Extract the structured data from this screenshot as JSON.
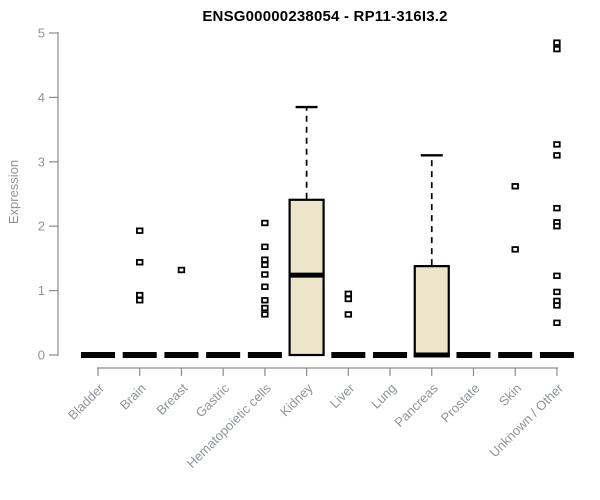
{
  "chart_data": {
    "type": "boxplot",
    "title": "ENSG00000238054 - RP11-316I3.2",
    "ylabel": "Expression",
    "xlabel": "",
    "ylim": [
      0,
      5
    ],
    "yticks": [
      0,
      1,
      2,
      3,
      4,
      5
    ],
    "grid": false,
    "legend": false,
    "categories": [
      "Bladder",
      "Brain",
      "Breast",
      "Gastric",
      "Hematopoietic cells",
      "Kidney",
      "Liver",
      "Lung",
      "Pancreas",
      "Prostate",
      "Skin",
      "Unknown / Other"
    ],
    "series": [
      {
        "category": "Bladder",
        "whisker_low": 0,
        "q1": 0,
        "median": 0,
        "q3": 0,
        "whisker_high": 0,
        "outliers": []
      },
      {
        "category": "Brain",
        "whisker_low": 0,
        "q1": 0,
        "median": 0,
        "q3": 0,
        "whisker_high": 0,
        "outliers": [
          1.93,
          1.44,
          0.93,
          0.85
        ]
      },
      {
        "category": "Breast",
        "whisker_low": 0,
        "q1": 0,
        "median": 0,
        "q3": 0,
        "whisker_high": 0,
        "outliers": [
          1.32
        ]
      },
      {
        "category": "Gastric",
        "whisker_low": 0,
        "q1": 0,
        "median": 0,
        "q3": 0,
        "whisker_high": 0,
        "outliers": []
      },
      {
        "category": "Hematopoietic cells",
        "whisker_low": 0,
        "q1": 0,
        "median": 0,
        "q3": 0,
        "whisker_high": 0,
        "outliers": [
          2.05,
          1.68,
          1.48,
          1.4,
          1.25,
          1.06,
          0.85,
          0.73,
          0.63
        ]
      },
      {
        "category": "Kidney",
        "whisker_low": 0,
        "q1": 0,
        "median": 1.24,
        "q3": 2.41,
        "whisker_high": 3.85,
        "outliers": []
      },
      {
        "category": "Liver",
        "whisker_low": 0,
        "q1": 0,
        "median": 0,
        "q3": 0,
        "whisker_high": 0,
        "outliers": [
          0.95,
          0.87,
          0.63
        ]
      },
      {
        "category": "Lung",
        "whisker_low": 0,
        "q1": 0,
        "median": 0,
        "q3": 0,
        "whisker_high": 0,
        "outliers": []
      },
      {
        "category": "Pancreas",
        "whisker_low": 0,
        "q1": 0,
        "median": 0,
        "q3": 1.38,
        "whisker_high": 3.1,
        "outliers": []
      },
      {
        "category": "Prostate",
        "whisker_low": 0,
        "q1": 0,
        "median": 0,
        "q3": 0,
        "whisker_high": 0,
        "outliers": []
      },
      {
        "category": "Skin",
        "whisker_low": 0,
        "q1": 0,
        "median": 0,
        "q3": 0,
        "whisker_high": 0,
        "outliers": [
          2.62,
          1.64
        ]
      },
      {
        "category": "Unknown / Other",
        "whisker_low": 0,
        "q1": 0,
        "median": 0,
        "q3": 0,
        "whisker_high": 0,
        "outliers": [
          4.85,
          4.75,
          3.27,
          3.1,
          2.28,
          2.06,
          2.0,
          1.23,
          0.98,
          0.84,
          0.77,
          0.5
        ]
      }
    ],
    "colors": {
      "box_fill": "#ECE5CA",
      "box_border": "#000000",
      "median": "#000000",
      "whisker": "#000000",
      "outlier_fill": "#FFFFFF",
      "outlier_border": "#000000",
      "flat_bar": "#000000",
      "axis": "#8c8c8c",
      "tick_label": "#8f949b",
      "title": "#000000"
    }
  }
}
